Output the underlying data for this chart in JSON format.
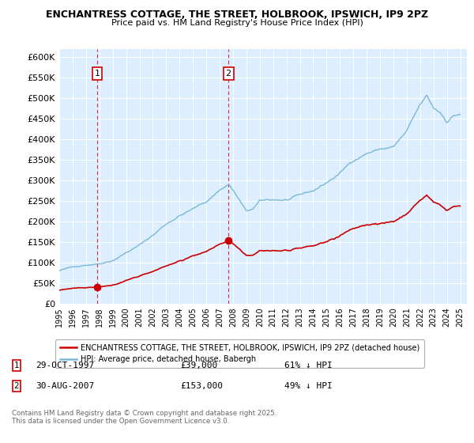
{
  "title1": "ENCHANTRESS COTTAGE, THE STREET, HOLBROOK, IPSWICH, IP9 2PZ",
  "title2": "Price paid vs. HM Land Registry's House Price Index (HPI)",
  "ylabel_ticks": [
    "£0",
    "£50K",
    "£100K",
    "£150K",
    "£200K",
    "£250K",
    "£300K",
    "£350K",
    "£400K",
    "£450K",
    "£500K",
    "£550K",
    "£600K"
  ],
  "ylim": [
    0,
    620000
  ],
  "xlim_start": 1995.0,
  "xlim_end": 2025.5,
  "hpi_color": "#7ab8d9",
  "price_color": "#cc0000",
  "marker1_x": 1997.83,
  "marker1_y": 39000,
  "marker2_x": 2007.66,
  "marker2_y": 153000,
  "legend_line1": "ENCHANTRESS COTTAGE, THE STREET, HOLBROOK, IPSWICH, IP9 2PZ (detached house)",
  "legend_line2": "HPI: Average price, detached house, Babergh",
  "footer": "Contains HM Land Registry data © Crown copyright and database right 2025.\nThis data is licensed under the Open Government Licence v3.0.",
  "background_color": "#ffffff",
  "plot_bg_color": "#ddeeff",
  "grid_color": "#ffffff"
}
